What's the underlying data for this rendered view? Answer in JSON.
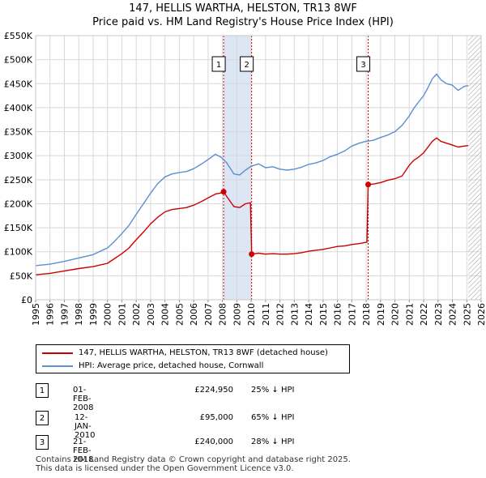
{
  "title_line1": "147, HELLIS WARTHA, HELSTON, TR13 8WF",
  "title_line2": "Price paid vs. HM Land Registry's House Price Index (HPI)",
  "legend": {
    "red_label": "147, HELLIS WARTHA, HELSTON, TR13 8WF (detached house)",
    "blue_label": "HPI: Average price, detached house, Cornwall"
  },
  "colors": {
    "red": "#cc0000",
    "blue": "#5b8fd0",
    "shade": "#dce6f5",
    "grid": "#d8d8d8"
  },
  "transactions": [
    {
      "num": "1",
      "date": "01-FEB-2008",
      "price": "£224,950",
      "delta": "25% ↓ HPI"
    },
    {
      "num": "2",
      "date": "12-JAN-2010",
      "price": "£95,000",
      "delta": "65% ↓ HPI"
    },
    {
      "num": "3",
      "date": "21-FEB-2018",
      "price": "£240,000",
      "delta": "28% ↓ HPI"
    }
  ],
  "footer_line1": "Contains HM Land Registry data © Crown copyright and database right 2025.",
  "footer_line2": "This data is licensed under the Open Government Licence v3.0.",
  "chart_data": {
    "type": "line",
    "title": "147, HELLIS WARTHA, HELSTON, TR13 8WF",
    "subtitle": "Price paid vs. HM Land Registry's House Price Index (HPI)",
    "xlim": [
      1995,
      2026
    ],
    "ylim": [
      0,
      550000
    ],
    "x_ticks": [
      1995,
      1996,
      1997,
      1998,
      1999,
      2000,
      2001,
      2002,
      2003,
      2004,
      2005,
      2006,
      2007,
      2008,
      2009,
      2010,
      2011,
      2012,
      2013,
      2014,
      2015,
      2016,
      2017,
      2018,
      2019,
      2020,
      2021,
      2022,
      2023,
      2024,
      2025,
      2026
    ],
    "y_ticks": [
      0,
      50000,
      100000,
      150000,
      200000,
      250000,
      300000,
      350000,
      400000,
      450000,
      500000,
      550000
    ],
    "y_tick_labels": [
      "£0",
      "£50K",
      "£100K",
      "£150K",
      "£200K",
      "£250K",
      "£300K",
      "£350K",
      "£400K",
      "£450K",
      "£500K",
      "£550K"
    ],
    "shaded_ranges": [
      [
        2008.08,
        2010.03
      ]
    ],
    "future_hatch_from": 2025.1,
    "markers": [
      {
        "label": "1",
        "x": 2008.08
      },
      {
        "label": "2",
        "x": 2010.03
      },
      {
        "label": "3",
        "x": 2018.14
      }
    ],
    "sales": [
      {
        "x": 2008.08,
        "y": 224950
      },
      {
        "x": 2010.03,
        "y": 95000
      },
      {
        "x": 2018.14,
        "y": 240000
      }
    ],
    "series": [
      {
        "name": "HPI: Average price, detached house, Cornwall",
        "color": "#5b8fd0",
        "x": [
          1995,
          1996,
          1997,
          1998,
          1999,
          2000,
          2000.5,
          2001,
          2001.5,
          2002,
          2002.5,
          2003,
          2003.5,
          2004,
          2004.5,
          2005,
          2005.5,
          2006,
          2006.5,
          2007,
          2007.5,
          2007.9,
          2008.3,
          2008.8,
          2009.2,
          2009.6,
          2010,
          2010.5,
          2011,
          2011.5,
          2012,
          2012.5,
          2013,
          2013.5,
          2014,
          2014.5,
          2015,
          2015.5,
          2016,
          2016.5,
          2017,
          2017.5,
          2018,
          2018.5,
          2019,
          2019.5,
          2020,
          2020.5,
          2021,
          2021.3,
          2021.6,
          2022,
          2022.3,
          2022.6,
          2022.9,
          2023.2,
          2023.6,
          2024,
          2024.4,
          2024.8,
          2025.1
        ],
        "y": [
          71000,
          74000,
          80000,
          87000,
          94000,
          108000,
          122000,
          138000,
          155000,
          178000,
          200000,
          222000,
          242000,
          256000,
          262000,
          265000,
          267000,
          273000,
          282000,
          292000,
          303000,
          297000,
          285000,
          262000,
          260000,
          270000,
          278000,
          283000,
          275000,
          277000,
          272000,
          270000,
          272000,
          276000,
          282000,
          285000,
          290000,
          298000,
          303000,
          310000,
          320000,
          326000,
          330000,
          332000,
          338000,
          343000,
          350000,
          363000,
          383000,
          398000,
          410000,
          425000,
          442000,
          460000,
          470000,
          458000,
          450000,
          447000,
          436000,
          444000,
          446000
        ]
      },
      {
        "name": "147, HELLIS WARTHA, HELSTON, TR13 8WF (detached house)",
        "color": "#cc0000",
        "x": [
          1995,
          1996,
          1997,
          1998,
          1999,
          2000,
          2000.5,
          2001,
          2001.5,
          2002,
          2002.5,
          2003,
          2003.5,
          2004,
          2004.5,
          2005,
          2005.5,
          2006,
          2006.5,
          2007,
          2007.5,
          2008.0,
          2008.08,
          2008.3,
          2008.8,
          2009.2,
          2009.6,
          2009.95,
          2010.03,
          2010.5,
          2011,
          2011.5,
          2012,
          2012.5,
          2013,
          2013.5,
          2014,
          2014.5,
          2015,
          2015.5,
          2016,
          2016.5,
          2017,
          2017.5,
          2018.05,
          2018.14,
          2018.5,
          2019,
          2019.5,
          2020,
          2020.5,
          2021,
          2021.3,
          2021.6,
          2022,
          2022.3,
          2022.6,
          2022.9,
          2023.2,
          2023.6,
          2024,
          2024.4,
          2024.8,
          2025.1
        ],
        "y": [
          52000,
          55000,
          60000,
          65000,
          69000,
          76000,
          86000,
          96000,
          108000,
          125000,
          141000,
          158000,
          172000,
          183000,
          188000,
          190000,
          192000,
          197000,
          204000,
          212000,
          220000,
          223000,
          224950,
          215000,
          194000,
          192000,
          200000,
          202000,
          95000,
          97000,
          95000,
          96000,
          95000,
          95000,
          96000,
          98000,
          101000,
          103000,
          105000,
          108000,
          111000,
          112000,
          115000,
          117000,
          120000,
          240000,
          241000,
          244000,
          249000,
          252000,
          258000,
          280000,
          290000,
          296000,
          306000,
          318000,
          330000,
          337000,
          330000,
          326000,
          322000,
          318000,
          320000,
          321000
        ]
      }
    ]
  }
}
